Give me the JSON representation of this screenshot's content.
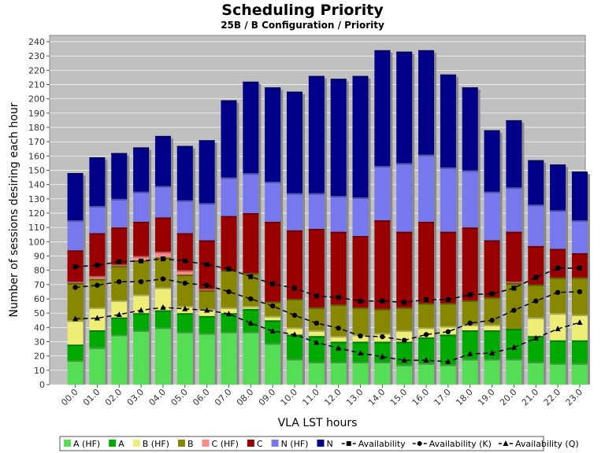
{
  "chart_data": {
    "type": "bar",
    "title": "Scheduling Priority",
    "subtitle": "25B / B Configuration /  Priority",
    "xlabel": "VLA LST hours",
    "ylabel": "Number of sessions desiring each hour",
    "ylim": [
      0,
      240
    ],
    "yticks": [
      0,
      10,
      20,
      30,
      40,
      50,
      60,
      70,
      80,
      90,
      100,
      110,
      120,
      130,
      140,
      150,
      160,
      170,
      180,
      190,
      200,
      210,
      220,
      230,
      240
    ],
    "grid": true,
    "legend_position": "bottom",
    "categories": [
      "00.0",
      "01.0",
      "02.0",
      "03.0",
      "04.0",
      "05.0",
      "06.0",
      "07.0",
      "08.0",
      "09.0",
      "10.0",
      "11.0",
      "12.0",
      "13.0",
      "14.0",
      "15.0",
      "16.0",
      "17.0",
      "18.0",
      "19.0",
      "20.0",
      "21.0",
      "22.0",
      "23.0"
    ],
    "stacked_series": [
      {
        "name": "A (HF)",
        "color": "#55dd55",
        "values": [
          17,
          26,
          35,
          38,
          40,
          37,
          36,
          37,
          37,
          29,
          18,
          16,
          16,
          16,
          16,
          14,
          15,
          14,
          18,
          18,
          18,
          16,
          15,
          15
        ]
      },
      {
        "name": "A",
        "color": "#00aa00",
        "values": [
          11,
          12,
          12,
          12,
          12,
          13,
          12,
          13,
          16,
          16,
          17,
          18,
          14,
          14,
          14,
          16,
          18,
          21,
          20,
          20,
          21,
          18,
          16,
          16
        ]
      },
      {
        "name": "B (HF)",
        "color": "#eeee77",
        "values": [
          17,
          16,
          12,
          13,
          16,
          5,
          5,
          4,
          2,
          3,
          5,
          4,
          4,
          5,
          6,
          8,
          7,
          6,
          4,
          4,
          0,
          13,
          19,
          18
        ]
      },
      {
        "name": "B",
        "color": "#888800",
        "values": [
          26,
          20,
          24,
          24,
          21,
          22,
          13,
          26,
          23,
          10,
          20,
          16,
          22,
          19,
          17,
          16,
          17,
          16,
          17,
          19,
          32,
          23,
          25,
          26
        ]
      },
      {
        "name": "C (HF)",
        "color": "#ff8888",
        "values": [
          1,
          2,
          1,
          3,
          4,
          3,
          1,
          0,
          0,
          0,
          0,
          0,
          0,
          0,
          0,
          0,
          0,
          0,
          0,
          0,
          1,
          0,
          0,
          0
        ]
      },
      {
        "name": "C",
        "color": "#990000",
        "values": [
          22,
          30,
          26,
          24,
          24,
          26,
          34,
          38,
          42,
          56,
          48,
          55,
          51,
          50,
          62,
          53,
          57,
          50,
          51,
          40,
          35,
          27,
          20,
          17
        ]
      },
      {
        "name": "N (HF)",
        "color": "#7777ee",
        "values": [
          21,
          19,
          20,
          21,
          22,
          23,
          26,
          27,
          28,
          28,
          26,
          25,
          25,
          27,
          38,
          48,
          47,
          45,
          40,
          34,
          31,
          29,
          27,
          23
        ]
      },
      {
        "name": "N",
        "color": "#000088",
        "values": [
          33,
          34,
          32,
          31,
          35,
          38,
          44,
          54,
          64,
          66,
          71,
          82,
          82,
          85,
          81,
          78,
          73,
          65,
          58,
          43,
          47,
          31,
          32,
          34
        ]
      }
    ],
    "line_series": [
      {
        "name": "Availability",
        "marker": "square",
        "values": [
          82.5,
          83.5,
          86,
          86.5,
          88,
          86.5,
          84,
          81,
          75.5,
          70.5,
          67.5,
          62,
          61,
          58.5,
          58.5,
          57.5,
          59.5,
          59.5,
          63,
          63.5,
          67.5,
          75,
          81.5,
          81.5
        ]
      },
      {
        "name": "Availability (K)",
        "marker": "circle",
        "values": [
          68,
          69.5,
          72,
          72,
          74,
          71,
          69.5,
          65,
          60,
          55,
          48.5,
          43,
          39.5,
          34,
          33.5,
          31,
          35,
          37,
          43,
          45,
          52,
          58.5,
          64.5,
          65
        ]
      },
      {
        "name": "Availability (Q)",
        "marker": "triangle",
        "values": [
          46,
          46.5,
          49,
          52,
          54,
          53,
          52,
          49.5,
          43,
          37.5,
          35,
          29.5,
          25.5,
          22,
          19.5,
          17,
          17,
          16,
          21.5,
          22,
          26,
          32.5,
          39,
          43.5
        ]
      }
    ]
  }
}
